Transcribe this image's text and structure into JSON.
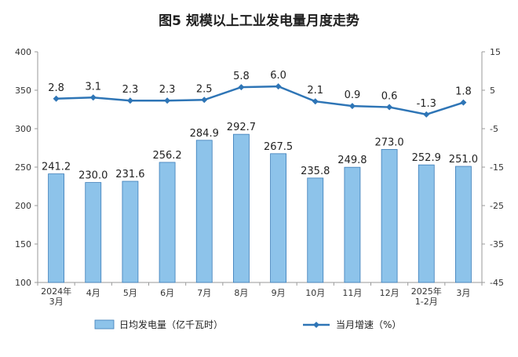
{
  "chart_data": {
    "type": "bar",
    "title": "图5  规模以上工业发电量月度走势",
    "categories": [
      [
        "2024年",
        "3月"
      ],
      [
        "4月"
      ],
      [
        "5月"
      ],
      [
        "6月"
      ],
      [
        "7月"
      ],
      [
        "8月"
      ],
      [
        "9月"
      ],
      [
        "10月"
      ],
      [
        "11月"
      ],
      [
        "12月"
      ],
      [
        "2025年",
        "1-2月"
      ],
      [
        "3月"
      ]
    ],
    "series": [
      {
        "name": "日均发电量（亿千瓦时）",
        "type": "bar",
        "axis": "left",
        "color": "#8dc3ea",
        "values": [
          241.2,
          230.0,
          231.6,
          256.2,
          284.9,
          292.7,
          267.5,
          235.8,
          249.8,
          273.0,
          252.9,
          251.0
        ],
        "labels": [
          "241.2",
          "230.0",
          "231.6",
          "256.2",
          "284.9",
          "292.7",
          "267.5",
          "235.8",
          "249.8",
          "273.0",
          "252.9",
          "251.0"
        ]
      },
      {
        "name": "当月增速（%）",
        "type": "line",
        "axis": "right",
        "color": "#2e75b6",
        "values": [
          2.8,
          3.1,
          2.3,
          2.3,
          2.5,
          5.8,
          6.0,
          2.1,
          0.9,
          0.6,
          -1.3,
          1.8
        ],
        "labels": [
          "2.8",
          "3.1",
          "2.3",
          "2.3",
          "2.5",
          "5.8",
          "6.0",
          "2.1",
          "0.9",
          "0.6",
          "-1.3",
          "1.8"
        ]
      }
    ],
    "y_left": {
      "min": 100,
      "max": 400,
      "ticks": [
        "100",
        "150",
        "200",
        "250",
        "300",
        "350",
        "400"
      ]
    },
    "y_right": {
      "min": -45,
      "max": 15,
      "ticks": [
        "-45",
        "-35",
        "-25",
        "-15",
        "-5",
        "5",
        "15"
      ]
    },
    "legend": {
      "position": "bottom"
    },
    "grid": false
  }
}
